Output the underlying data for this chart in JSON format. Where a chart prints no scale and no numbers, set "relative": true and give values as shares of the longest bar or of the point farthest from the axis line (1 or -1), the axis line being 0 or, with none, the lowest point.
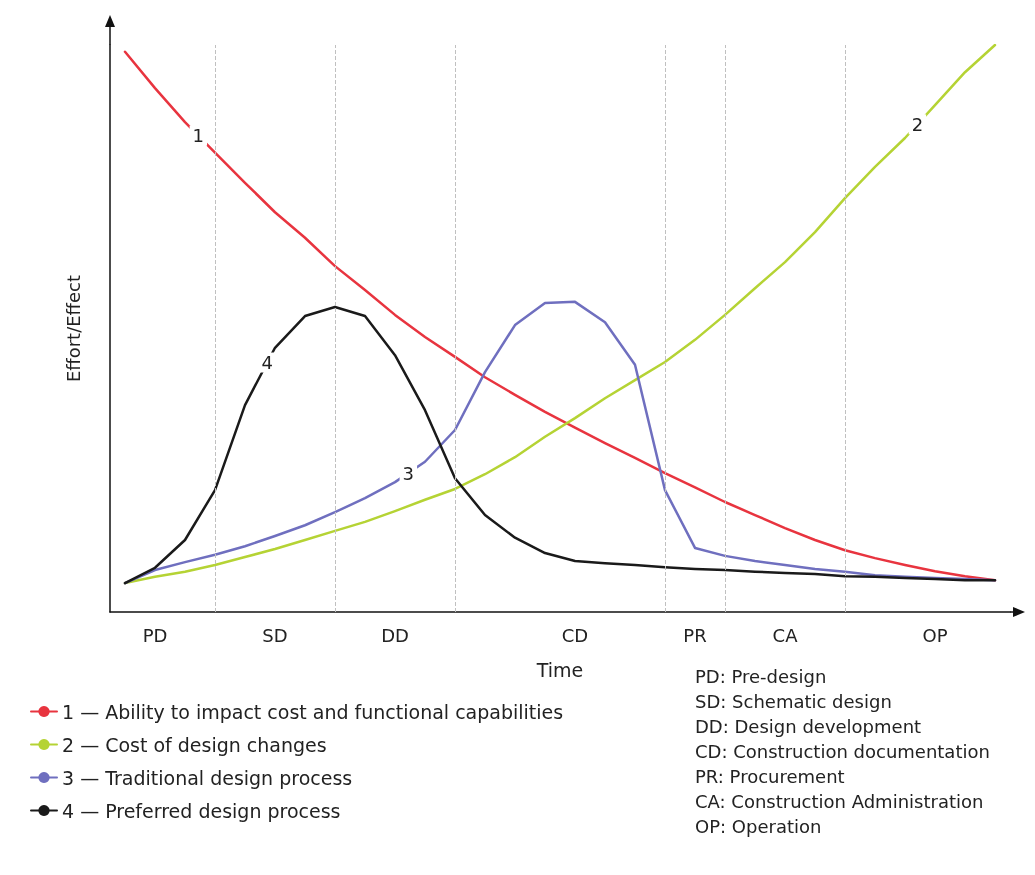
{
  "chart_data": {
    "type": "line",
    "relative": true,
    "xlabel": "Time",
    "ylabel": "Effort/Effect",
    "categories": [
      null,
      "PD",
      null,
      null,
      null,
      "SD",
      null,
      null,
      null,
      "DD",
      null,
      null,
      null,
      null,
      null,
      "CD",
      null,
      null,
      null,
      "PR",
      null,
      null,
      "CA",
      null,
      null,
      null,
      null,
      "OP",
      null,
      null
    ],
    "legend": "bottom left",
    "grid": "x",
    "series": [
      {
        "name": "1 — Ability to impact cost and functional capabilities",
        "color": "#e8343f",
        "values": [
          0.988,
          0.924,
          0.864,
          0.81,
          0.757,
          0.705,
          0.66,
          0.61,
          0.568,
          0.524,
          0.485,
          0.45,
          0.414,
          0.383,
          0.353,
          0.325,
          0.298,
          0.272,
          0.245,
          0.22,
          0.194,
          0.171,
          0.148,
          0.127,
          0.109,
          0.095,
          0.083,
          0.072,
          0.063,
          0.056
        ]
      },
      {
        "name": "2 — Cost of design changes",
        "color": "#b5d334",
        "values": [
          0.051,
          0.062,
          0.071,
          0.083,
          0.097,
          0.111,
          0.127,
          0.143,
          0.159,
          0.178,
          0.198,
          0.217,
          0.243,
          0.273,
          0.309,
          0.342,
          0.377,
          0.409,
          0.441,
          0.48,
          0.524,
          0.571,
          0.617,
          0.67,
          0.73,
          0.785,
          0.836,
          0.894,
          0.952,
          1.0
        ]
      },
      {
        "name": "3 — Traditional design process",
        "color": "#6f6fbf",
        "values": [
          0.051,
          0.074,
          0.088,
          0.101,
          0.116,
          0.134,
          0.153,
          0.176,
          0.201,
          0.229,
          0.265,
          0.321,
          0.423,
          0.506,
          0.545,
          0.547,
          0.511,
          0.436,
          0.215,
          0.113,
          0.099,
          0.09,
          0.083,
          0.076,
          0.071,
          0.065,
          0.062,
          0.06,
          0.058,
          0.056
        ]
      },
      {
        "name": "4 — Preferred design process",
        "color": "#1a1a1a",
        "values": [
          0.051,
          0.078,
          0.127,
          0.215,
          0.365,
          0.466,
          0.522,
          0.538,
          0.522,
          0.453,
          0.356,
          0.236,
          0.171,
          0.131,
          0.104,
          0.09,
          0.086,
          0.083,
          0.079,
          0.076,
          0.074,
          0.071,
          0.069,
          0.067,
          0.063,
          0.062,
          0.06,
          0.058,
          0.056,
          0.056
        ]
      }
    ],
    "annotations": [
      {
        "text": "1",
        "y": 0.84
      },
      {
        "text": "2",
        "y": 0.86
      },
      {
        "text": "3",
        "y": 0.245
      },
      {
        "text": "4",
        "y": 0.44
      },
      "PD: Pre-design",
      "SD: Schematic design",
      "DD: Design development",
      "CD: Construction documentation",
      "PR: Procurement",
      "CA: Construction Administration",
      "OP: Operation"
    ]
  }
}
